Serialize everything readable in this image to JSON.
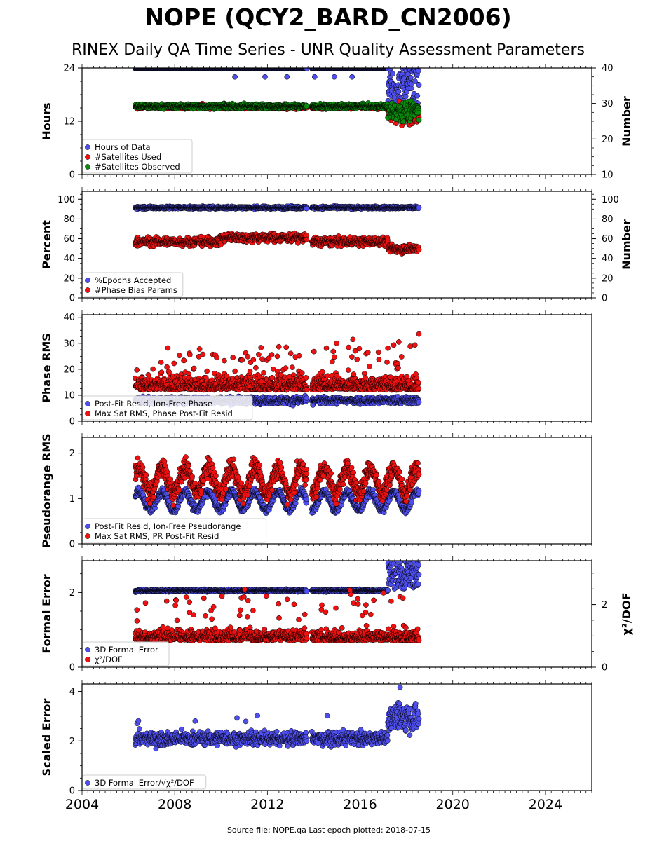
{
  "title": "NOPE (QCY2_BARD_CN2006)",
  "subtitle": "RINEX Daily QA Time Series - UNR Quality Assessment Parameters",
  "footer": "Source file: NOPE.qa Last epoch plotted: 2018-07-15",
  "colors": {
    "blue": "#4f4ff0",
    "red": "#ee1111",
    "green": "#0b8a0b",
    "edge": "#000000"
  },
  "chart_data": [
    {
      "type": "scatter",
      "id": "hours",
      "ylabel": "Hours",
      "ylabel_right": "Number",
      "ylim": [
        0,
        24
      ],
      "yticks": [
        0,
        12,
        24
      ],
      "ylim_right": [
        10,
        40
      ],
      "yticks_right": [
        10,
        20,
        30,
        40
      ],
      "xlim": [
        2004,
        2026
      ],
      "legend": [
        "Hours of Data",
        "#Satellites Used",
        "#Satellites Observed"
      ],
      "series": [
        {
          "name": "Hours of Data",
          "color": "blue",
          "axis": "left",
          "gen": "hours"
        },
        {
          "name": "#Satellites Used",
          "color": "red",
          "axis": "right",
          "gen": "satused"
        },
        {
          "name": "#Satellites Observed",
          "color": "green",
          "axis": "right",
          "gen": "satobs"
        }
      ]
    },
    {
      "type": "scatter",
      "id": "percent",
      "ylabel": "Percent",
      "ylabel_right": "Number",
      "ylim": [
        0,
        108
      ],
      "yticks": [
        0,
        20,
        40,
        60,
        80,
        100
      ],
      "ylim_right": [
        0,
        108
      ],
      "yticks_right": [
        0,
        20,
        40,
        60,
        80,
        100
      ],
      "xlim": [
        2004,
        2026
      ],
      "legend": [
        "%Epochs Accepted",
        "#Phase Bias Params"
      ],
      "series": [
        {
          "name": "%Epochs Accepted",
          "color": "blue",
          "axis": "left",
          "gen": "epochs"
        },
        {
          "name": "#Phase Bias Params",
          "color": "red",
          "axis": "right",
          "gen": "bias"
        }
      ]
    },
    {
      "type": "scatter",
      "id": "phase",
      "ylabel": "Phase RMS",
      "ylim": [
        0,
        41
      ],
      "yticks": [
        0,
        10,
        20,
        30,
        40
      ],
      "xlim": [
        2004,
        2026
      ],
      "legend": [
        "Post-Fit Resid, Ion-Free Phase",
        "Max Sat RMS, Phase Post-Fit Resid"
      ],
      "series": [
        {
          "name": "Post-Fit Resid, Ion-Free Phase",
          "color": "blue",
          "axis": "left",
          "gen": "phasepf"
        },
        {
          "name": "Max Sat RMS, Phase Post-Fit Resid",
          "color": "red",
          "axis": "left",
          "gen": "phasemax"
        }
      ]
    },
    {
      "type": "scatter",
      "id": "pseudo",
      "ylabel": "Pseudorange RMS",
      "ylim": [
        0,
        2.35
      ],
      "yticks": [
        0,
        1,
        2
      ],
      "xlim": [
        2004,
        2026
      ],
      "legend": [
        "Post-Fit Resid, Ion-Free Pseudorange",
        "Max Sat RMS, PR Post-Fit Resid"
      ],
      "series": [
        {
          "name": "Post-Fit Resid, Ion-Free Pseudorange",
          "color": "blue",
          "axis": "left",
          "gen": "prpf"
        },
        {
          "name": "Max Sat RMS, PR Post-Fit Resid",
          "color": "red",
          "axis": "left",
          "gen": "prmax"
        }
      ]
    },
    {
      "type": "scatter",
      "id": "formal",
      "ylabel": "Formal Error",
      "ylabel_right": "χ²/DOF",
      "ylim": [
        0,
        2.85
      ],
      "yticks": [
        0,
        2
      ],
      "ylim_right": [
        0,
        3.4
      ],
      "yticks_right": [
        0,
        2
      ],
      "xlim": [
        2004,
        2026
      ],
      "legend": [
        "3D Formal Error",
        "χ²/DOF"
      ],
      "series": [
        {
          "name": "3D Formal Error",
          "color": "blue",
          "axis": "left",
          "gen": "formal"
        },
        {
          "name": "χ²/DOF",
          "color": "red",
          "axis": "right",
          "gen": "chi"
        }
      ]
    },
    {
      "type": "scatter",
      "id": "scaled",
      "ylabel": "Scaled Error",
      "ylim": [
        0,
        4.3
      ],
      "yticks": [
        0,
        2,
        4
      ],
      "xlim": [
        2004,
        2026
      ],
      "xticks": [
        2004,
        2008,
        2012,
        2016,
        2020,
        2024
      ],
      "legend": [
        "3D Formal Error/√χ²/DOF"
      ],
      "series": [
        {
          "name": "3D Formal Error/√χ²/DOF",
          "color": "blue",
          "axis": "left",
          "gen": "scaled"
        }
      ]
    }
  ]
}
